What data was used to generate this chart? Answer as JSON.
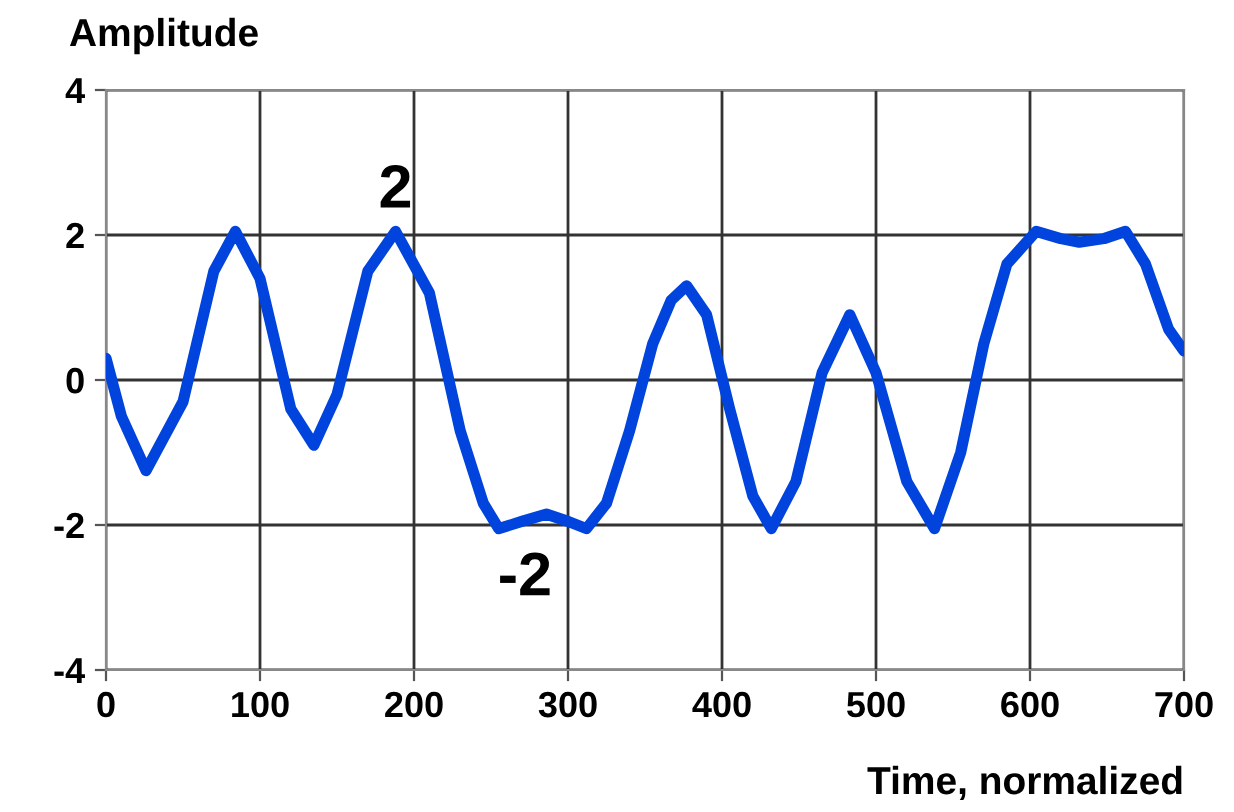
{
  "chart_data": {
    "type": "line",
    "ylabel": "Amplitude",
    "xlabel": "Time, normalized",
    "x": [
      0,
      10,
      26,
      50,
      70,
      84,
      100,
      120,
      135,
      150,
      170,
      188,
      210,
      230,
      245,
      255,
      270,
      286,
      300,
      312,
      325,
      340,
      355,
      367,
      377,
      390,
      405,
      420,
      432,
      448,
      465,
      483,
      500,
      520,
      538,
      555,
      570,
      585,
      604,
      620,
      632,
      648,
      662,
      675,
      690,
      700
    ],
    "series": [
      {
        "color": "#0044dd",
        "values": [
          0.3,
          -0.5,
          -1.25,
          -0.3,
          1.5,
          2.05,
          1.4,
          -0.4,
          -0.9,
          -0.2,
          1.5,
          2.05,
          1.2,
          -0.7,
          -1.7,
          -2.05,
          -1.95,
          -1.85,
          -1.95,
          -2.05,
          -1.7,
          -0.7,
          0.5,
          1.1,
          1.3,
          0.9,
          -0.4,
          -1.6,
          -2.05,
          -1.4,
          0.1,
          0.9,
          0.1,
          -1.4,
          -2.05,
          -1.0,
          0.5,
          1.6,
          2.05,
          1.95,
          1.9,
          1.95,
          2.05,
          1.6,
          0.7,
          0.4
        ]
      }
    ],
    "xlim": [
      0,
      700
    ],
    "ylim": [
      -4,
      4
    ],
    "xticks": [
      0,
      100,
      200,
      300,
      400,
      500,
      600,
      700
    ],
    "yticks": [
      -4,
      -2,
      0,
      2,
      4
    ],
    "grid": true,
    "line_style": "solid",
    "marker": "none",
    "annotations": [
      {
        "text": "2",
        "x": 188,
        "y": 2.05
      },
      {
        "text": "-2",
        "x": 272,
        "y": -2.05
      }
    ]
  }
}
